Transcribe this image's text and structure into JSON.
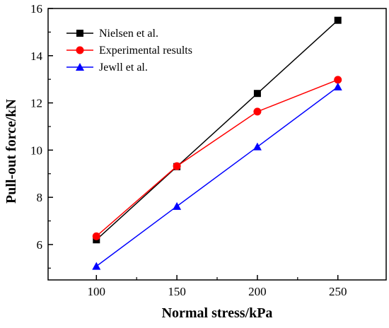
{
  "chart_data": {
    "type": "line",
    "title": "",
    "xlabel": "Normal stress/kPa",
    "ylabel": "Pull-out force/kN",
    "x": [
      100,
      150,
      200,
      250
    ],
    "xlim": [
      70,
      280
    ],
    "ylim": [
      4.5,
      16
    ],
    "xticks": [
      100,
      150,
      200,
      250
    ],
    "yticks": [
      6,
      8,
      10,
      12,
      14,
      16
    ],
    "grid": false,
    "legend_position": "top-left",
    "series": [
      {
        "name": "Nielsen et al.",
        "color": "#000000",
        "marker": "square",
        "values": [
          6.2,
          9.3,
          12.4,
          15.5
        ]
      },
      {
        "name": "Experimental results",
        "color": "#ff0000",
        "marker": "circle",
        "values": [
          6.35,
          9.32,
          11.63,
          12.98
        ]
      },
      {
        "name": "Jewll et al.",
        "color": "#0000ff",
        "marker": "triangle",
        "values": [
          5.08,
          7.62,
          10.14,
          12.68
        ]
      }
    ]
  }
}
